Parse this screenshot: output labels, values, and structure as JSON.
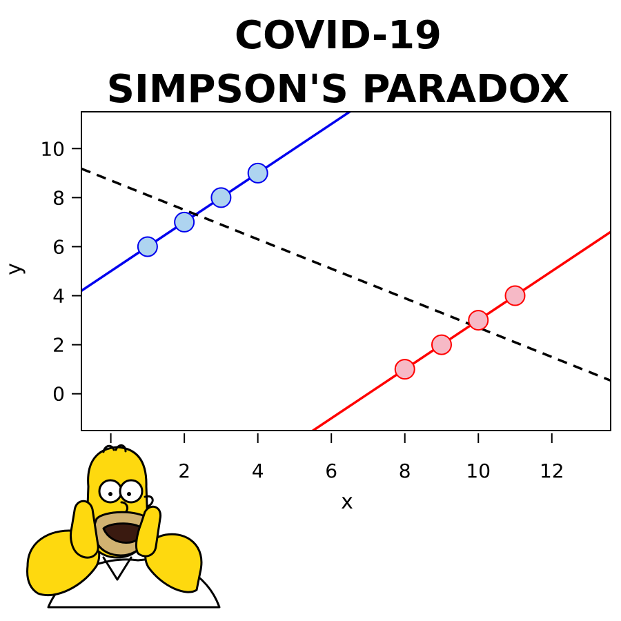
{
  "chart_data": {
    "type": "scatter",
    "title": [
      "COVID-19",
      "SIMPSON'S PARADOX"
    ],
    "xlabel": "x",
    "ylabel": "y",
    "xlim": [
      -0.8,
      13.6
    ],
    "ylim": [
      -1.5,
      11.5
    ],
    "xticks": [
      2,
      4,
      6,
      8,
      10,
      12
    ],
    "xtick_labels": [
      "2",
      "4",
      "6",
      "8",
      "10",
      "12"
    ],
    "yticks": [
      0,
      2,
      4,
      6,
      8,
      10
    ],
    "ytick_labels": [
      "0",
      "2",
      "4",
      "6",
      "8",
      "10"
    ],
    "grid": false,
    "legend": "none",
    "series": [
      {
        "x": [
          1,
          2,
          3,
          4
        ],
        "y": [
          6,
          7,
          8,
          9
        ],
        "color": "#0000ee",
        "fill": "#aed4f0",
        "fit": {
          "slope": 1,
          "intercept": 5
        }
      },
      {
        "x": [
          8,
          9,
          10,
          11
        ],
        "y": [
          1,
          2,
          3,
          4
        ],
        "color": "#ff0000",
        "fill": "#f6b9c6",
        "fit": {
          "slope": 1,
          "intercept": -7
        }
      }
    ],
    "overall_fit": {
      "slope": -0.6,
      "intercept": 8.7,
      "color": "#000000",
      "style": "dashed"
    }
  },
  "illustration": {
    "name": "homer-simpson",
    "colors": {
      "skin": "#fed90f",
      "mouth": "#d1b271",
      "shirt": "#ffffff",
      "outline": "#000000"
    }
  }
}
